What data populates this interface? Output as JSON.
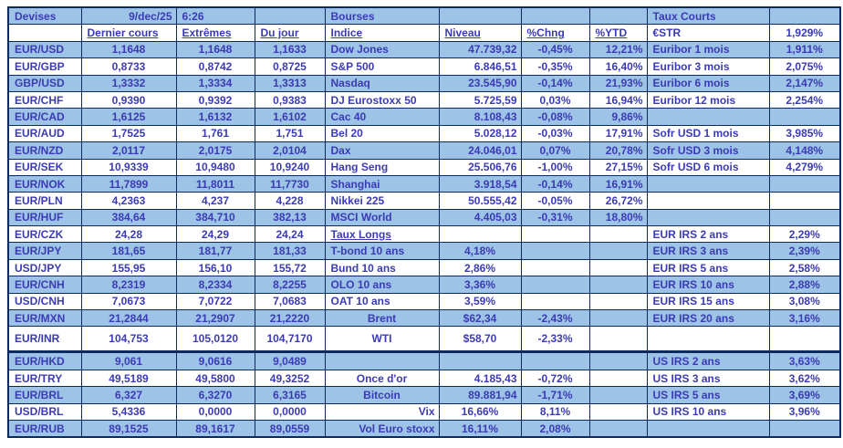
{
  "header": {
    "devises": "Devises",
    "date": "9/dec/25",
    "time": "6:26",
    "bourses": "Bourses",
    "taux_courts": "Taux Courts"
  },
  "subheader": {
    "dernier_cours": "Dernier cours",
    "extremes": "Extrêmes",
    "du_jour": "Du jour",
    "indice": "Indice",
    "niveau": "Niveau",
    "chng": "%Chng",
    "ytd": "%YTD",
    "estr_label": "€STR",
    "estr_value": "1,929%"
  },
  "colors": {
    "stripe_blue": "#9dc3e6",
    "text_blue": "#3b3bb5",
    "border_navy": "#0d2a5e"
  },
  "rows": [
    {
      "pair": "EUR/USD",
      "last": "1,1648",
      "ext": "1,1648",
      "day": "1,1633",
      "mid": {
        "label": "Dow Jones",
        "niveau": "47.739,32",
        "chng": "-0,45%",
        "ytd": "12,21%",
        "la": "al",
        "na": "ar"
      },
      "right": {
        "label": "Euribor 1 mois",
        "value": "1,911%"
      }
    },
    {
      "pair": "EUR/GBP",
      "last": "0,8733",
      "ext": "0,8742",
      "day": "0,8725",
      "mid": {
        "label": "S&P 500",
        "niveau": "6.846,51",
        "chng": "-0,35%",
        "ytd": "16,40%",
        "la": "al",
        "na": "ar"
      },
      "right": {
        "label": "Euribor 3 mois",
        "value": "2,075%"
      }
    },
    {
      "pair": "GBP/USD",
      "last": "1,3332",
      "ext": "1,3334",
      "day": "1,3313",
      "mid": {
        "label": "Nasdaq",
        "niveau": "23.545,90",
        "chng": "-0,14%",
        "ytd": "21,93%",
        "la": "al",
        "na": "ar"
      },
      "right": {
        "label": "Euribor 6 mois",
        "value": "2,147%"
      }
    },
    {
      "pair": "EUR/CHF",
      "last": "0,9390",
      "ext": "0,9392",
      "day": "0,9383",
      "mid": {
        "label": "DJ Eurostoxx 50",
        "niveau": "5.725,59",
        "chng": "0,03%",
        "ytd": "16,94%",
        "la": "al",
        "na": "ar"
      },
      "right": {
        "label": "Euribor 12 mois",
        "value": "2,254%"
      }
    },
    {
      "pair": "EUR/CAD",
      "last": "1,6125",
      "ext": "1,6132",
      "day": "1,6102",
      "mid": {
        "label": "Cac 40",
        "niveau": "8.108,43",
        "chng": "-0,08%",
        "ytd": "9,86%",
        "la": "al",
        "na": "ar"
      },
      "right": {
        "label": "",
        "value": ""
      }
    },
    {
      "pair": "EUR/AUD",
      "last": "1,7525",
      "ext": "1,761",
      "day": "1,751",
      "mid": {
        "label": "Bel 20",
        "niveau": "5.028,12",
        "chng": "-0,03%",
        "ytd": "17,91%",
        "la": "al",
        "na": "ar"
      },
      "right": {
        "label": "Sofr USD 1 mois",
        "value": "3,985%"
      }
    },
    {
      "pair": "EUR/NZD",
      "last": "2,0117",
      "ext": "2,0175",
      "day": "2,0104",
      "mid": {
        "label": "Dax",
        "niveau": "24.046,01",
        "chng": "0,07%",
        "ytd": "20,78%",
        "la": "al",
        "na": "ar"
      },
      "right": {
        "label": "Sofr USD 3 mois",
        "value": "4,148%"
      }
    },
    {
      "pair": "EUR/SEK",
      "last": "10,9339",
      "ext": "10,9480",
      "day": "10,9240",
      "mid": {
        "label": "Hang Seng",
        "niveau": "25.506,76",
        "chng": "-1,00%",
        "ytd": "27,15%",
        "la": "al",
        "na": "ar"
      },
      "right": {
        "label": "Sofr USD 6 mois",
        "value": "4,279%"
      }
    },
    {
      "pair": "EUR/NOK",
      "last": "11,7899",
      "ext": "11,8011",
      "day": "11,7730",
      "mid": {
        "label": "Shanghai",
        "niveau": "3.918,54",
        "chng": "-0,14%",
        "ytd": "16,91%",
        "la": "al",
        "na": "ar"
      },
      "right": {
        "label": "",
        "value": ""
      }
    },
    {
      "pair": "EUR/PLN",
      "last": "4,2363",
      "ext": "4,237",
      "day": "4,228",
      "mid": {
        "label": "Nikkei 225",
        "niveau": "50.555,42",
        "chng": "-0,05%",
        "ytd": "26,72%",
        "la": "al",
        "na": "ar"
      },
      "right": {
        "label": "",
        "value": ""
      }
    },
    {
      "pair": "EUR/HUF",
      "last": "384,64",
      "ext": "384,710",
      "day": "382,13",
      "mid": {
        "label": "MSCI World",
        "niveau": "4.405,03",
        "chng": "-0,31%",
        "ytd": "18,80%",
        "la": "al",
        "na": "ar"
      },
      "right": {
        "label": "",
        "value": ""
      }
    },
    {
      "pair": "EUR/CZK",
      "last": "24,28",
      "ext": "24,29",
      "day": "24,24",
      "mid": {
        "label": "Taux Longs",
        "niveau": "",
        "chng": "",
        "ytd": "",
        "la": "al",
        "na": "ac",
        "u": true
      },
      "right": {
        "label": "EUR IRS 2 ans",
        "value": "2,29%"
      }
    },
    {
      "pair": "EUR/JPY",
      "last": "181,65",
      "ext": "181,77",
      "day": "181,33",
      "mid": {
        "label": "T-bond 10 ans",
        "niveau": "4,18%",
        "chng": "",
        "ytd": "",
        "la": "al",
        "na": "ac"
      },
      "right": {
        "label": "EUR IRS 3 ans",
        "value": "2,39%"
      }
    },
    {
      "pair": "USD/JPY",
      "last": "155,95",
      "ext": "156,10",
      "day": "155,72",
      "mid": {
        "label": "Bund 10 ans",
        "niveau": "2,86%",
        "chng": "",
        "ytd": "",
        "la": "al",
        "na": "ac"
      },
      "right": {
        "label": "EUR IRS 5 ans",
        "value": "2,58%"
      }
    },
    {
      "pair": "EUR/CNH",
      "last": "8,2319",
      "ext": "8,2334",
      "day": "8,2255",
      "mid": {
        "label": "OLO 10 ans",
        "niveau": "3,36%",
        "chng": "",
        "ytd": "",
        "la": "al",
        "na": "ac"
      },
      "right": {
        "label": "EUR IRS 10 ans",
        "value": "2,88%"
      }
    },
    {
      "pair": "USD/CNH",
      "last": "7,0673",
      "ext": "7,0722",
      "day": "7,0683",
      "mid": {
        "label": "OAT 10 ans",
        "niveau": "3,59%",
        "chng": "",
        "ytd": "",
        "la": "al",
        "na": "ac"
      },
      "right": {
        "label": "EUR IRS 15 ans",
        "value": "3,08%"
      }
    },
    {
      "pair": "EUR/MXN",
      "last": "21,2844",
      "ext": "21,2907",
      "day": "21,2220",
      "mid": {
        "label": "Brent",
        "niveau": "$62,34",
        "chng": "-2,43%",
        "ytd": "",
        "la": "ac",
        "na": "ac"
      },
      "right": {
        "label": "EUR IRS 20 ans",
        "value": "3,16%"
      }
    },
    {
      "pair": "EUR/INR",
      "last": "104,753",
      "ext": "105,0120",
      "day": "104,7170",
      "tall": true,
      "thick": true,
      "mid": {
        "label": "WTI",
        "niveau": "$58,70",
        "chng": "-2,33%",
        "ytd": "",
        "la": "ac",
        "na": "ac"
      },
      "right": {
        "label": "",
        "value": ""
      }
    },
    {
      "pair": "EUR/HKD",
      "last": "9,061",
      "ext": "9,0616",
      "day": "9,0489",
      "mid": {
        "label": "",
        "niveau": "",
        "chng": "",
        "ytd": "",
        "la": "al",
        "na": "ac"
      },
      "right": {
        "label": "US IRS 2 ans",
        "value": "3,63%"
      }
    },
    {
      "pair": "EUR/TRY",
      "last": "49,5189",
      "ext": "49,5800",
      "day": "49,3252",
      "mid": {
        "label": "Once d'or",
        "niveau": "4.185,43",
        "chng": "-0,72%",
        "ytd": "",
        "la": "ac",
        "na": "ar"
      },
      "right": {
        "label": "US IRS 3 ans",
        "value": "3,62%"
      }
    },
    {
      "pair": "EUR/BRL",
      "last": "6,327",
      "ext": "6,3270",
      "day": "6,3165",
      "mid": {
        "label": "Bitcoin",
        "niveau": "89.881,94",
        "chng": "-1,71%",
        "ytd": "",
        "la": "ac",
        "na": "ar"
      },
      "right": {
        "label": "US IRS 5 ans",
        "value": "3,69%"
      }
    },
    {
      "pair": "USD/BRL",
      "last": "5,4336",
      "ext": "0,0000",
      "day": "0,0000",
      "mid": {
        "label": "Vix",
        "niveau": "16,66%",
        "chng": "8,11%",
        "ytd": "",
        "la": "ar",
        "na": "ac"
      },
      "right": {
        "label": "US IRS 10 ans",
        "value": "3,96%"
      }
    },
    {
      "pair": "EUR/RUB",
      "last": "89,1525",
      "ext": "89,1617",
      "day": "89,0559",
      "mid": {
        "label": "Vol Euro stoxx",
        "niveau": "16,11%",
        "chng": "2,08%",
        "ytd": "",
        "la": "ar",
        "na": "ac"
      },
      "right": {
        "label": "",
        "value": ""
      }
    }
  ]
}
